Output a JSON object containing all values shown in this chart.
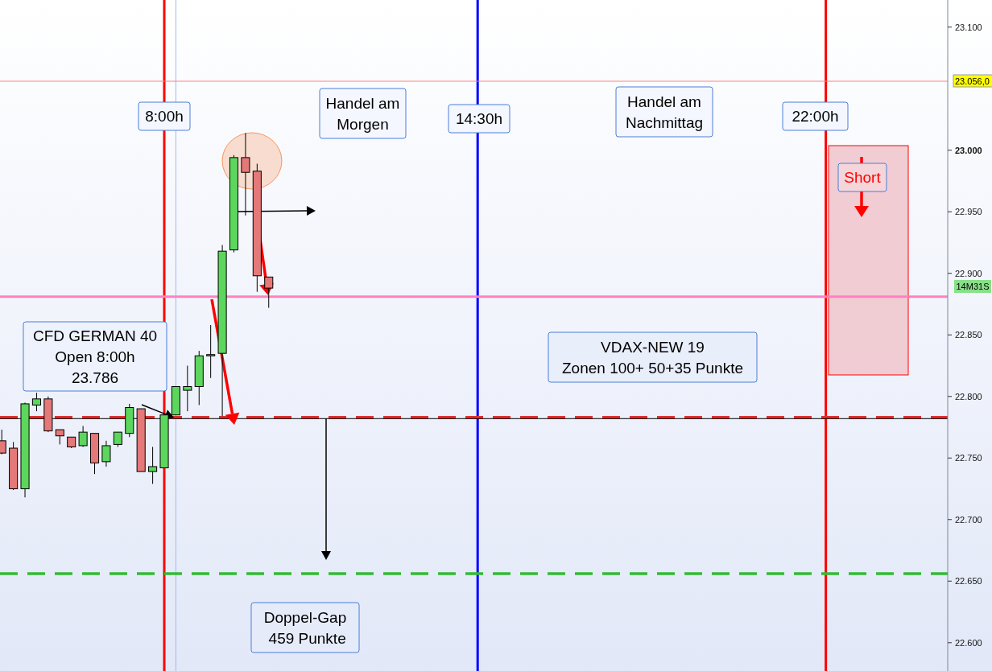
{
  "chart_data": {
    "type": "candlestick",
    "categories": [
      null,
      null,
      null,
      null,
      null,
      null,
      null,
      null,
      null,
      null,
      null,
      null,
      null,
      null,
      null,
      null,
      null,
      null,
      null,
      null,
      null,
      null,
      null,
      null,
      null,
      null,
      null,
      null,
      null,
      null,
      null,
      null,
      null,
      null,
      null,
      null,
      null,
      null,
      null,
      null,
      null,
      null,
      null,
      null,
      null,
      null,
      null,
      null,
      null,
      null,
      null,
      null,
      null,
      null,
      null,
      null,
      null,
      null,
      null,
      null,
      null,
      null,
      null,
      null,
      null,
      null,
      null,
      null,
      null,
      null,
      null,
      null,
      null,
      null,
      null,
      null,
      null,
      null,
      null,
      null,
      null,
      null
    ],
    "ohlc": [
      [
        22764,
        22773,
        22753,
        22754
      ],
      [
        22758,
        22763,
        22724,
        22725
      ],
      [
        22725,
        22795,
        22718,
        22794
      ],
      [
        22793,
        22803,
        22788,
        22798
      ],
      [
        22798,
        22800,
        22771,
        22772
      ],
      [
        22773,
        22773,
        22761,
        22768
      ],
      [
        22767,
        22767,
        22758,
        22759
      ],
      [
        22760,
        22776,
        22759,
        22771
      ],
      [
        22770,
        22770,
        22737,
        22746
      ],
      [
        22747,
        22764,
        22743,
        22760
      ],
      [
        22761,
        22771,
        22759,
        22771
      ],
      [
        22770,
        22794,
        22767,
        22791
      ],
      [
        22790,
        22790,
        22739,
        22739
      ],
      [
        22739,
        22759,
        22729,
        22743
      ],
      [
        22742,
        22785,
        22742,
        22785
      ],
      [
        22785,
        22808,
        22785,
        22808
      ],
      [
        22805,
        22825,
        22788,
        22808
      ],
      [
        22808,
        22837,
        22793,
        22833
      ],
      [
        22833,
        22858,
        22815,
        22834
      ],
      [
        22835,
        22923,
        22784,
        22918
      ],
      [
        22919,
        22996,
        22917,
        22994
      ],
      [
        22994,
        23014,
        22947,
        22982
      ],
      [
        22983,
        22989,
        22885,
        22898
      ],
      [
        22897,
        22897,
        22872,
        22888
      ],
      null,
      null,
      null,
      null,
      null,
      null,
      null,
      null,
      null,
      null,
      null,
      null,
      null,
      null,
      null,
      null,
      null,
      null,
      null,
      null,
      null,
      null,
      null,
      null,
      null,
      null,
      null,
      null,
      null,
      null,
      null,
      null,
      null,
      null,
      null,
      null,
      null,
      null,
      null,
      null,
      null,
      null,
      null,
      null,
      null,
      null,
      null,
      null,
      null,
      null,
      null,
      null,
      null,
      null,
      null,
      null,
      null,
      null
    ],
    "ylim": [
      22577,
      23122
    ],
    "yticks": [
      {
        "value": 22600,
        "label": "22.600"
      },
      {
        "value": 22650,
        "label": "22.650"
      },
      {
        "value": 22700,
        "label": "22.700"
      },
      {
        "value": 22750,
        "label": "22.750"
      },
      {
        "value": 22800,
        "label": "22.800"
      },
      {
        "value": 22850,
        "label": "22.850"
      },
      {
        "value": 22900,
        "label": "22.900"
      },
      {
        "value": 22950,
        "label": "22.950"
      },
      {
        "value": 23000,
        "label": "23.000"
      },
      {
        "value": 23100,
        "label": "23.100"
      }
    ],
    "tick_labels": "y",
    "grid": false,
    "ref_lines": [
      {
        "axis": "y",
        "value": 23056,
        "label": "23.056,0",
        "color": "#ff8080"
      },
      {
        "axis": "y",
        "value": 22881,
        "color": "#ff80c0"
      },
      {
        "axis": "y",
        "value": 22783,
        "color": "#e03030",
        "line_style": "dashed"
      },
      {
        "axis": "y",
        "value": 22782,
        "color": "#000000"
      },
      {
        "axis": "y",
        "value": 22656,
        "color": "#33bb33",
        "line_style": "dashed"
      }
    ],
    "annotations": [
      "8:00h",
      "Handel am\nMorgen",
      "14:30h",
      "Handel am\nNachmittag",
      "22:00h",
      "Short",
      "CFD GERMAN 40\nOpen 8:00h\n23.786",
      "VDAX-NEW 19\nZonen 100+ 50+35 Punkte",
      "Doppel-Gap\n 459 Punkte",
      "14M31S"
    ]
  }
}
